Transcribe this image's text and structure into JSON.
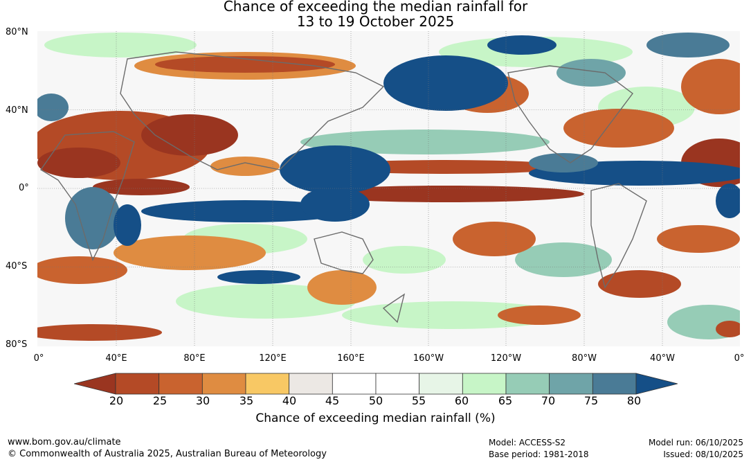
{
  "title_line1": "Chance of exceeding the median rainfall for",
  "title_line2": "13 to 19 October 2025",
  "lat_labels": [
    "80°N",
    "40°N",
    "0°",
    "40°S",
    "80°S"
  ],
  "lon_labels": [
    "0°",
    "40°E",
    "80°E",
    "120°E",
    "160°E",
    "160°W",
    "120°W",
    "80°W",
    "40°W",
    "0°"
  ],
  "colorbar": {
    "ticks": [
      "20",
      "25",
      "30",
      "35",
      "40",
      "45",
      "50",
      "55",
      "60",
      "65",
      "70",
      "75",
      "80"
    ],
    "colors": [
      "#9a3520",
      "#b44a26",
      "#c9632f",
      "#df8c41",
      "#f8c864",
      "#ece8e4",
      "#ffffff",
      "#ffffff",
      "#e7f5e7",
      "#c7f5c7",
      "#96ccb6",
      "#6fa4a8",
      "#4a7b96",
      "#154f87"
    ],
    "label": "Chance of exceeding median rainfall (%)"
  },
  "footer": {
    "site": "www.bom.gov.au/climate",
    "copyright": "© Commonwealth of Australia 2025, Australian Bureau of Meteorology",
    "model": "Model: ACCESS-S2",
    "base_period": "Base period: 1981-2018",
    "model_run": "Model run: 06/10/2025",
    "issued": "Issued: 08/10/2025"
  }
}
